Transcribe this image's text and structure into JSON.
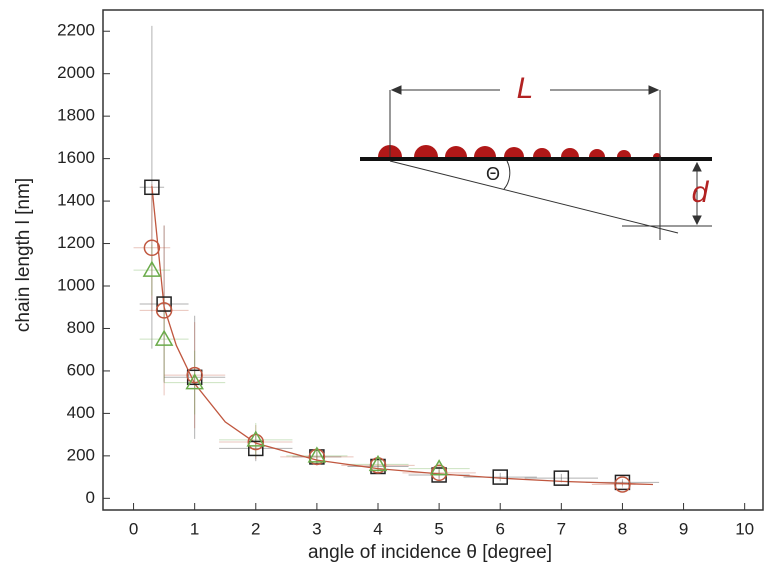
{
  "chart_data": {
    "type": "scatter",
    "xlabel": "angle of incidence θ [degree]",
    "ylabel": "chain length l [nm]",
    "xlim": [
      -0.5,
      10.3
    ],
    "ylim": [
      -55,
      2300
    ],
    "xticks": [
      0,
      1,
      2,
      3,
      4,
      5,
      6,
      7,
      8,
      9,
      10
    ],
    "yticks": [
      0,
      200,
      400,
      600,
      800,
      1000,
      1200,
      1400,
      1600,
      1800,
      2000,
      2200
    ],
    "series": [
      {
        "marker": "square",
        "color": "#222222",
        "x": [
          0.3,
          0.5,
          1,
          2,
          3,
          4,
          5,
          6,
          7,
          8
        ],
        "values": [
          1465,
          915,
          570,
          235,
          195,
          150,
          110,
          100,
          95,
          75
        ],
        "yerr": [
          760,
          370,
          290,
          60,
          40,
          30,
          25,
          20,
          20,
          15
        ],
        "xerr": [
          0.2,
          0.4,
          0.5,
          0.6,
          0.4,
          0.5,
          0.5,
          0.6,
          0.6,
          0.6
        ]
      },
      {
        "marker": "circle",
        "color": "#c0573f",
        "x": [
          0.3,
          0.5,
          1,
          2,
          3,
          4,
          5,
          8
        ],
        "values": [
          1180,
          885,
          580,
          265,
          195,
          155,
          120,
          65
        ],
        "yerr": [
          300,
          400,
          250,
          80,
          40,
          30,
          25,
          15
        ],
        "xerr": [
          0.3,
          0.4,
          0.5,
          0.6,
          0.6,
          0.6,
          0.6,
          0.5
        ]
      },
      {
        "marker": "triangle",
        "color": "#6aab4a",
        "x": [
          0.3,
          0.5,
          1,
          2,
          3,
          4,
          5
        ],
        "values": [
          1075,
          750,
          545,
          275,
          200,
          160,
          140
        ],
        "yerr": [
          120,
          200,
          150,
          80,
          40,
          30,
          25
        ],
        "xerr": [
          0.3,
          0.4,
          0.5,
          0.6,
          0.5,
          0.5,
          0.5
        ]
      }
    ],
    "fit": {
      "color": "#c0573f",
      "x": [
        0.3,
        0.5,
        0.7,
        1,
        1.5,
        2,
        3,
        4,
        5,
        6,
        7,
        8,
        8.5
      ],
      "values": [
        1470,
        900,
        720,
        540,
        360,
        260,
        180,
        140,
        115,
        95,
        80,
        70,
        65
      ]
    },
    "annotations": [
      "L",
      "Θ",
      "d"
    ]
  }
}
